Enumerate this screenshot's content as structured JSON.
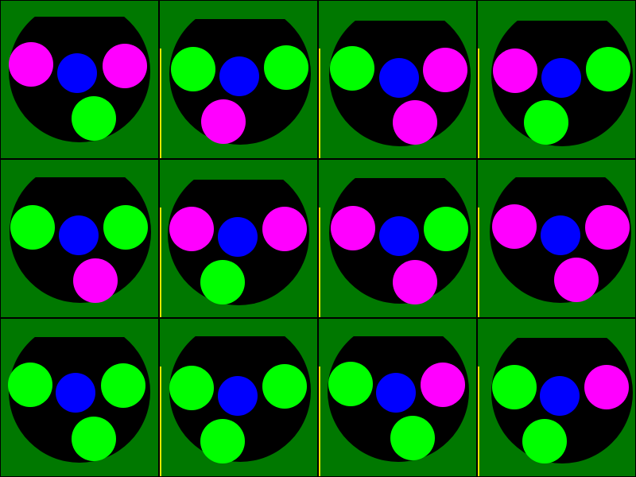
{
  "colors": {
    "background": "#007800",
    "bowl": "#000000",
    "blue": "#0000ff",
    "green": "#00ff00",
    "magenta": "#ff00ff",
    "edge": "#e6e600"
  },
  "grid": {
    "rows": 3,
    "cols": 4
  },
  "tiles": [
    {
      "row": 0,
      "col": 0,
      "balls": {
        "left": "magenta",
        "center": "blue",
        "right": "magenta",
        "bottom": "green"
      }
    },
    {
      "row": 0,
      "col": 1,
      "balls": {
        "left": "green",
        "center": "blue",
        "right": "green",
        "bottom": "magenta"
      }
    },
    {
      "row": 0,
      "col": 2,
      "balls": {
        "left": "green",
        "center": "blue",
        "right": "magenta",
        "bottom": "magenta"
      }
    },
    {
      "row": 0,
      "col": 3,
      "balls": {
        "left": "magenta",
        "center": "blue",
        "right": "green",
        "bottom": "green"
      }
    },
    {
      "row": 1,
      "col": 0,
      "balls": {
        "left": "green",
        "center": "blue",
        "right": "green",
        "bottom": "magenta"
      }
    },
    {
      "row": 1,
      "col": 1,
      "balls": {
        "left": "magenta",
        "center": "blue",
        "right": "magenta",
        "bottom": "green"
      }
    },
    {
      "row": 1,
      "col": 2,
      "balls": {
        "left": "magenta",
        "center": "blue",
        "right": "green",
        "bottom": "magenta"
      }
    },
    {
      "row": 1,
      "col": 3,
      "balls": {
        "left": "magenta",
        "center": "blue",
        "right": "magenta",
        "bottom": "magenta"
      }
    },
    {
      "row": 2,
      "col": 0,
      "balls": {
        "left": "green",
        "center": "blue",
        "right": "green",
        "bottom": "green"
      }
    },
    {
      "row": 2,
      "col": 1,
      "balls": {
        "left": "green",
        "center": "blue",
        "right": "green",
        "bottom": "green"
      }
    },
    {
      "row": 2,
      "col": 2,
      "balls": {
        "left": "green",
        "center": "blue",
        "right": "magenta",
        "bottom": "green"
      }
    },
    {
      "row": 2,
      "col": 3,
      "balls": {
        "left": "green",
        "center": "blue",
        "right": "magenta",
        "bottom": "green"
      }
    }
  ]
}
